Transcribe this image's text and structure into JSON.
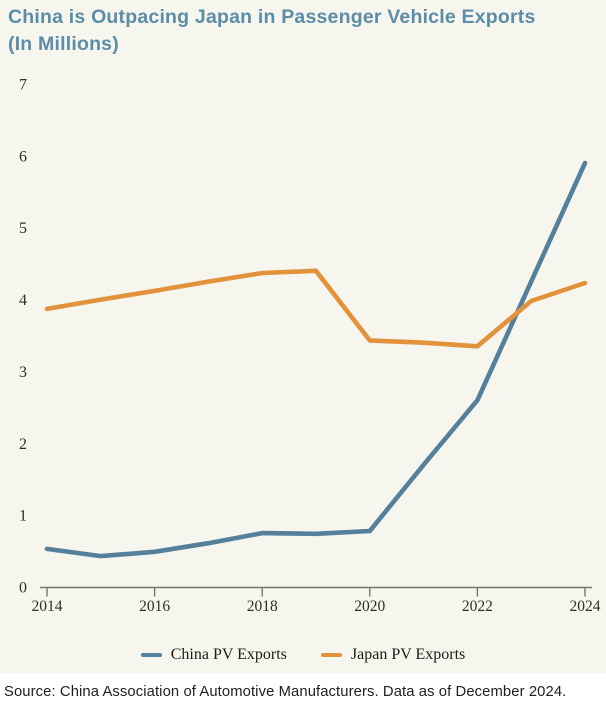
{
  "header": {
    "title_line1": "China is Outpacing Japan in Passenger Vehicle Exports",
    "title_line2": "(In Millions)"
  },
  "footer": {
    "source": "Source: China Association of Automotive Manufacturers. Data as of December 2024."
  },
  "colors": {
    "title": "#5b8da8",
    "background": "#f7f6ee",
    "axis": "#75756e",
    "china_line": "#54809b",
    "japan_line": "#e2923b"
  },
  "chart_data": {
    "type": "line",
    "title": "China is Outpacing Japan in Passenger Vehicle Exports (In Millions)",
    "x": [
      2014,
      2015,
      2016,
      2017,
      2018,
      2019,
      2020,
      2021,
      2022,
      2023,
      2024
    ],
    "series": [
      {
        "name": "China PV Exports",
        "color": "#54809b",
        "values": [
          0.53,
          0.43,
          0.49,
          0.61,
          0.75,
          0.74,
          0.78,
          1.7,
          2.6,
          4.25,
          5.9
        ]
      },
      {
        "name": "Japan PV Exports",
        "color": "#e2923b",
        "values": [
          3.87,
          4.0,
          4.12,
          4.25,
          4.37,
          4.4,
          3.43,
          3.4,
          3.35,
          3.98,
          4.23
        ]
      }
    ],
    "xlim": [
      2014,
      2024
    ],
    "ylim": [
      0,
      7
    ],
    "xticks": [
      2014,
      2016,
      2018,
      2020,
      2022,
      2024
    ],
    "yticks": [
      0,
      1,
      2,
      3,
      4,
      5,
      6,
      7
    ],
    "grid": false,
    "legend_position": "bottom",
    "ylabel": "",
    "xlabel": ""
  }
}
